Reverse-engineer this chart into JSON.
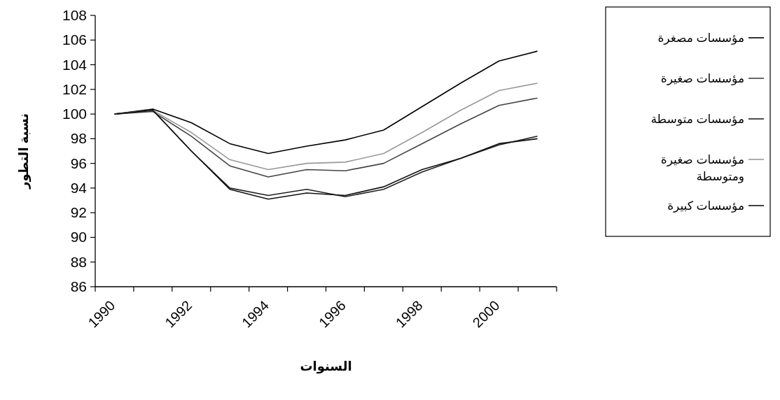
{
  "chart_data": {
    "type": "line",
    "xlabel": "السنوات",
    "ylabel": "نسبة التطور",
    "categories": [
      "1990",
      null,
      "1992",
      null,
      "1994",
      null,
      "1996",
      null,
      "1998",
      null,
      "2000",
      null
    ],
    "ylim": [
      86,
      108
    ],
    "yticks": [
      86,
      88,
      90,
      92,
      94,
      96,
      98,
      100,
      102,
      104,
      106,
      108
    ],
    "legend": "right",
    "series": [
      {
        "name": "مؤسسات مصغرة",
        "color": "#000000",
        "values": [
          100,
          100.4,
          99.3,
          97.6,
          96.8,
          97.4,
          97.9,
          98.7,
          100.6,
          102.5,
          104.3,
          105.1
        ]
      },
      {
        "name": "مؤسسات صغيرة",
        "color": "#444444",
        "values": [
          100,
          100.2,
          98.2,
          95.8,
          94.9,
          95.5,
          95.4,
          96.0,
          97.6,
          99.2,
          100.7,
          101.3
        ]
      },
      {
        "name": "مؤسسات متوسطة",
        "color": "#222222",
        "values": [
          100,
          100.3,
          97.0,
          94.0,
          93.4,
          93.9,
          93.3,
          93.9,
          95.3,
          96.4,
          97.5,
          98.2
        ]
      },
      {
        "name": "مؤسسات صغيرة ومتوسطة",
        "color": "#999999",
        "values": [
          100,
          100.3,
          98.5,
          96.3,
          95.5,
          96.0,
          96.1,
          96.8,
          98.5,
          100.3,
          101.9,
          102.5
        ]
      },
      {
        "name": "مؤسسات كبيرة",
        "color": "#111111",
        "values": [
          100,
          100.3,
          97.0,
          93.9,
          93.1,
          93.6,
          93.4,
          94.1,
          95.5,
          96.4,
          97.6,
          98.0
        ]
      }
    ]
  }
}
